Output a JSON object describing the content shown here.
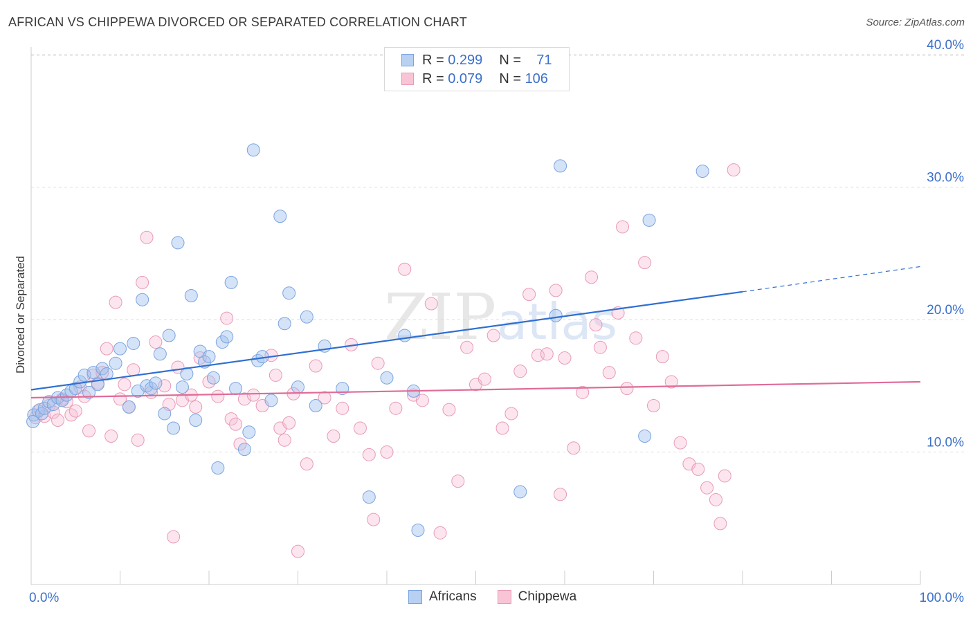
{
  "title": "AFRICAN VS CHIPPEWA DIVORCED OR SEPARATED CORRELATION CHART",
  "source": "Source: ZipAtlas.com",
  "watermark": {
    "zip": "ZIP",
    "atlas": "atlas"
  },
  "legend": {
    "rows": [
      {
        "r_label": "R =",
        "r_value": "0.299",
        "n_label": "N =",
        "n_value": "71",
        "fill": "#b8d0f2",
        "stroke": "#7aa3e0"
      },
      {
        "r_label": "R =",
        "r_value": "0.079",
        "n_label": "N =",
        "n_value": "106",
        "fill": "#f8c4d6",
        "stroke": "#e89ab5"
      }
    ]
  },
  "bottom_legend": [
    {
      "label": "Africans",
      "fill": "#b8d0f2",
      "stroke": "#7aa3e0"
    },
    {
      "label": "Chippewa",
      "fill": "#f8c4d6",
      "stroke": "#e89ab5"
    }
  ],
  "chart_data": {
    "type": "scatter",
    "xlabel": "",
    "ylabel": "Divorced or Separated",
    "xlim": [
      0,
      100
    ],
    "ylim": [
      0,
      40
    ],
    "x_tick_labels": {
      "left": "0.0%",
      "right": "100.0%"
    },
    "y_tick_labels": [
      {
        "value": 10,
        "label": "10.0%"
      },
      {
        "value": 20,
        "label": "20.0%"
      },
      {
        "value": 30,
        "label": "30.0%"
      },
      {
        "value": 40,
        "label": "40.0%"
      }
    ],
    "grid": true,
    "colors": {
      "africans_line": "#2f6fd1",
      "chippewa_line": "#e06b97",
      "tick_label": "#3a6fc9"
    },
    "series": [
      {
        "name": "Africans",
        "fill": "rgba(160,192,238,0.45)",
        "stroke": "#7aa3e0",
        "trend": {
          "x0": 0,
          "y0": 14.7,
          "x1": 80,
          "y1": 22.1,
          "dashed_to_x": 100,
          "dashed_to_y": 24.0
        },
        "points": [
          [
            0.3,
            12.8
          ],
          [
            0.8,
            13.1
          ],
          [
            1.2,
            12.9
          ],
          [
            1.5,
            13.3
          ],
          [
            2,
            13.8
          ],
          [
            2.5,
            13.6
          ],
          [
            3,
            14.1
          ],
          [
            3.5,
            13.9
          ],
          [
            4,
            14.3
          ],
          [
            4.5,
            14.6
          ],
          [
            5,
            14.8
          ],
          [
            5.5,
            15.3
          ],
          [
            6,
            15.8
          ],
          [
            6.5,
            14.5
          ],
          [
            7,
            16.0
          ],
          [
            7.5,
            15.1
          ],
          [
            8,
            16.3
          ],
          [
            8.5,
            15.9
          ],
          [
            9.5,
            16.7
          ],
          [
            10,
            17.8
          ],
          [
            11,
            13.4
          ],
          [
            11.5,
            18.2
          ],
          [
            12,
            14.6
          ],
          [
            12.5,
            21.5
          ],
          [
            13,
            15.0
          ],
          [
            13.5,
            14.8
          ],
          [
            14,
            15.2
          ],
          [
            14.5,
            17.4
          ],
          [
            15,
            12.9
          ],
          [
            15.5,
            18.8
          ],
          [
            16,
            11.8
          ],
          [
            16.5,
            25.8
          ],
          [
            17,
            14.9
          ],
          [
            17.5,
            15.9
          ],
          [
            18,
            21.8
          ],
          [
            18.5,
            12.4
          ],
          [
            19,
            17.6
          ],
          [
            19.5,
            16.8
          ],
          [
            20,
            17.2
          ],
          [
            20.5,
            15.6
          ],
          [
            21,
            8.8
          ],
          [
            21.5,
            18.3
          ],
          [
            22,
            18.7
          ],
          [
            22.5,
            22.8
          ],
          [
            23,
            14.8
          ],
          [
            24,
            10.2
          ],
          [
            24.5,
            11.5
          ],
          [
            25,
            32.8
          ],
          [
            25.5,
            16.9
          ],
          [
            26,
            17.2
          ],
          [
            27,
            13.9
          ],
          [
            28,
            27.8
          ],
          [
            28.5,
            19.7
          ],
          [
            29,
            22.0
          ],
          [
            30,
            14.9
          ],
          [
            31,
            20.2
          ],
          [
            32,
            13.5
          ],
          [
            33,
            18.0
          ],
          [
            35,
            14.8
          ],
          [
            38,
            6.6
          ],
          [
            40,
            15.6
          ],
          [
            42,
            18.8
          ],
          [
            43,
            14.6
          ],
          [
            43.5,
            4.1
          ],
          [
            55,
            7.0
          ],
          [
            59,
            20.3
          ],
          [
            59.5,
            31.6
          ],
          [
            69,
            11.2
          ],
          [
            69.5,
            27.5
          ],
          [
            75.5,
            31.2
          ],
          [
            0.2,
            12.3
          ]
        ]
      },
      {
        "name": "Chippewa",
        "fill": "rgba(248,190,212,0.40)",
        "stroke": "#e89ab5",
        "trend": {
          "x0": 0,
          "y0": 14.1,
          "x1": 100,
          "y1": 15.3
        },
        "points": [
          [
            0.5,
            12.6
          ],
          [
            1,
            13.2
          ],
          [
            1.5,
            12.7
          ],
          [
            2,
            13.5
          ],
          [
            2.5,
            13.0
          ],
          [
            3,
            12.4
          ],
          [
            3.5,
            14.0
          ],
          [
            4,
            13.8
          ],
          [
            4.5,
            12.8
          ],
          [
            5,
            13.1
          ],
          [
            5.5,
            14.9
          ],
          [
            6,
            14.2
          ],
          [
            6.5,
            11.6
          ],
          [
            7,
            15.8
          ],
          [
            7.5,
            15.2
          ],
          [
            8,
            16.0
          ],
          [
            8.5,
            17.8
          ],
          [
            9,
            11.2
          ],
          [
            9.5,
            21.3
          ],
          [
            10,
            14.0
          ],
          [
            10.5,
            15.1
          ],
          [
            11,
            13.4
          ],
          [
            11.5,
            16.2
          ],
          [
            12,
            10.9
          ],
          [
            12.5,
            22.8
          ],
          [
            13,
            26.2
          ],
          [
            13.5,
            14.5
          ],
          [
            14,
            18.3
          ],
          [
            15,
            15.0
          ],
          [
            15.5,
            13.6
          ],
          [
            16,
            3.6
          ],
          [
            16.5,
            16.4
          ],
          [
            17,
            13.9
          ],
          [
            18,
            14.3
          ],
          [
            18.5,
            13.4
          ],
          [
            19,
            17.1
          ],
          [
            20,
            15.3
          ],
          [
            21,
            14.2
          ],
          [
            22,
            20.1
          ],
          [
            22.5,
            12.5
          ],
          [
            23,
            12.1
          ],
          [
            23.5,
            10.6
          ],
          [
            24,
            14.0
          ],
          [
            25,
            14.3
          ],
          [
            26,
            13.5
          ],
          [
            27,
            17.3
          ],
          [
            27.5,
            15.8
          ],
          [
            28,
            11.8
          ],
          [
            28.5,
            10.9
          ],
          [
            29,
            12.2
          ],
          [
            29.5,
            14.4
          ],
          [
            30,
            2.5
          ],
          [
            31,
            9.1
          ],
          [
            32,
            16.5
          ],
          [
            33,
            14.1
          ],
          [
            34,
            11.2
          ],
          [
            35,
            13.3
          ],
          [
            36,
            18.1
          ],
          [
            37,
            11.8
          ],
          [
            38,
            9.8
          ],
          [
            38.5,
            4.9
          ],
          [
            39,
            16.7
          ],
          [
            40,
            10.0
          ],
          [
            41,
            13.3
          ],
          [
            42,
            23.8
          ],
          [
            43,
            14.3
          ],
          [
            44,
            13.9
          ],
          [
            45,
            21.2
          ],
          [
            46,
            3.9
          ],
          [
            47,
            13.2
          ],
          [
            48,
            7.8
          ],
          [
            49,
            17.9
          ],
          [
            50,
            15.1
          ],
          [
            51,
            15.5
          ],
          [
            52,
            18.8
          ],
          [
            53,
            11.8
          ],
          [
            54,
            12.9
          ],
          [
            55,
            16.1
          ],
          [
            56,
            21.9
          ],
          [
            57,
            17.3
          ],
          [
            58,
            17.4
          ],
          [
            59,
            22.2
          ],
          [
            59.5,
            6.8
          ],
          [
            60,
            17.1
          ],
          [
            61,
            10.3
          ],
          [
            62,
            14.5
          ],
          [
            63,
            23.2
          ],
          [
            63.5,
            19.6
          ],
          [
            64,
            17.9
          ],
          [
            65,
            16.0
          ],
          [
            66,
            20.5
          ],
          [
            66.5,
            27.0
          ],
          [
            67,
            14.8
          ],
          [
            68,
            18.6
          ],
          [
            69,
            24.3
          ],
          [
            70,
            13.5
          ],
          [
            71,
            17.2
          ],
          [
            72,
            15.3
          ],
          [
            73,
            10.7
          ],
          [
            74,
            9.1
          ],
          [
            75,
            8.7
          ],
          [
            76,
            7.3
          ],
          [
            77,
            6.4
          ],
          [
            77.5,
            4.6
          ],
          [
            78,
            8.2
          ],
          [
            79,
            31.3
          ]
        ]
      }
    ]
  }
}
